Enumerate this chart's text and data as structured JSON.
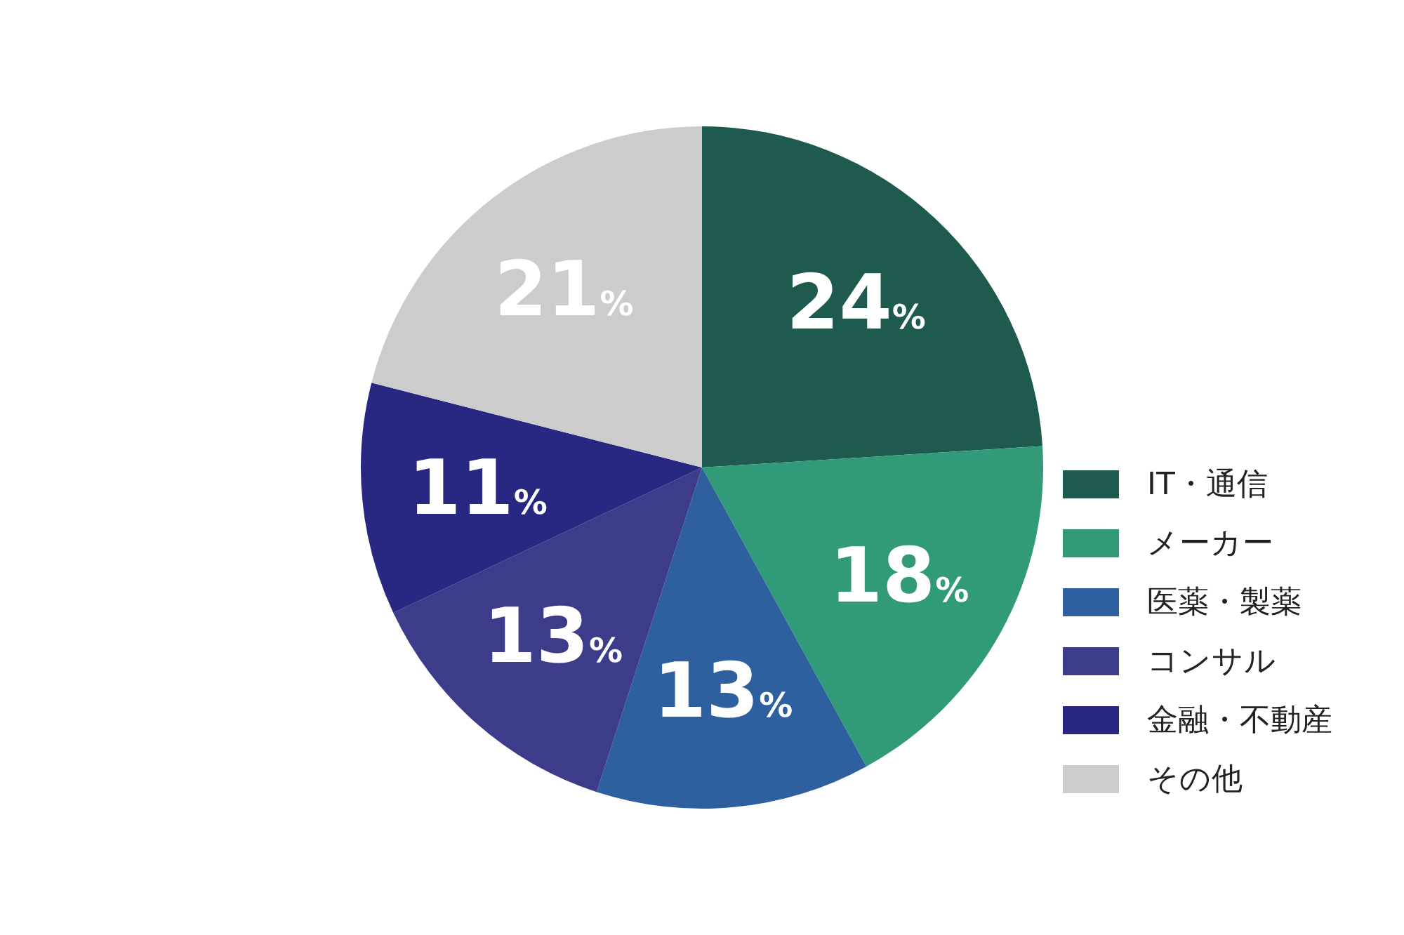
{
  "chart_data": {
    "type": "pie",
    "categories": [
      "IT・通信",
      "メーカー",
      "医薬・製薬",
      "コンサル",
      "金融・不動産",
      "その他"
    ],
    "values": [
      24,
      18,
      13,
      13,
      11,
      21
    ],
    "colors": [
      "#1f5a4e",
      "#319a78",
      "#2e5f9e",
      "#3c3c8a",
      "#282882",
      "#cccccc"
    ],
    "value_labels": [
      "24%",
      "18%",
      "13%",
      "13%",
      "11%",
      "21%"
    ],
    "legend": "right"
  }
}
